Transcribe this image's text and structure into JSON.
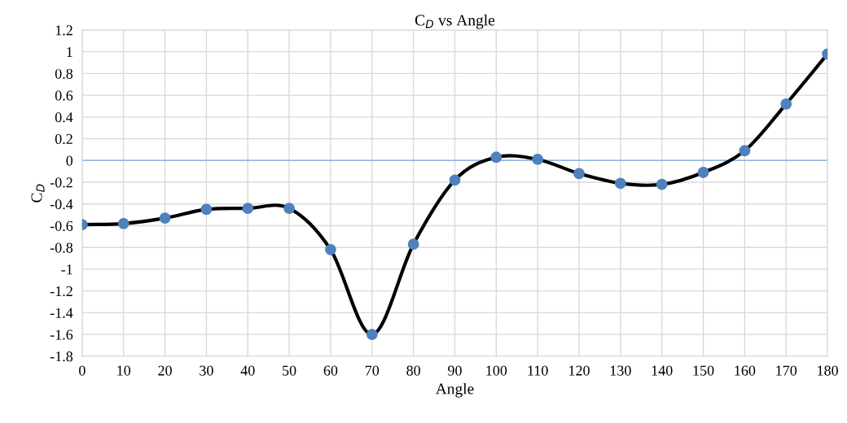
{
  "chart_data": {
    "type": "line",
    "title": "C$_{D}$ vs Angle",
    "xlabel": "Angle",
    "ylabel": "C$_{D}$",
    "x": [
      0,
      10,
      20,
      30,
      40,
      50,
      60,
      70,
      80,
      90,
      100,
      110,
      120,
      130,
      140,
      150,
      160,
      170,
      180
    ],
    "series": [
      {
        "color": "#000000",
        "colors": [
          "#4f81bd",
          "#4f81bd",
          "#4f81bd",
          "#4f81bd",
          "#4f81bd",
          "#4f81bd",
          "#4f81bd",
          "#4f81bd",
          "#4f81bd",
          "#4f81bd",
          "#4f81bd",
          "#4f81bd",
          "#4f81bd",
          "#4f81bd",
          "#4f81bd",
          "#4f81bd",
          "#4f81bd",
          "#4f81bd",
          "#4f81bd"
        ],
        "values": [
          -0.59,
          -0.58,
          -0.53,
          -0.45,
          -0.44,
          -0.44,
          -0.82,
          -1.6,
          -0.77,
          -0.18,
          0.03,
          0.01,
          -0.12,
          -0.21,
          -0.22,
          -0.11,
          0.09,
          0.52,
          0.98
        ]
      }
    ],
    "xlim": [
      0,
      180
    ],
    "xticks": [
      0,
      10,
      20,
      30,
      40,
      50,
      60,
      70,
      80,
      90,
      100,
      110,
      120,
      130,
      140,
      150,
      160,
      170,
      180
    ],
    "ylim": [
      -1.8,
      1.2
    ],
    "yticks": [
      -1.8,
      -1.6,
      -1.4,
      -1.2,
      -1,
      -0.8,
      -0.6,
      -0.4,
      -0.2,
      0,
      0.2,
      0.4,
      0.6,
      0.8,
      1,
      1.2
    ],
    "ref_lines": [
      {
        "axis": "y",
        "value": 0,
        "color": "#8eb4e3"
      }
    ],
    "grid": true,
    "marker": "circle",
    "line_style": "solid"
  }
}
